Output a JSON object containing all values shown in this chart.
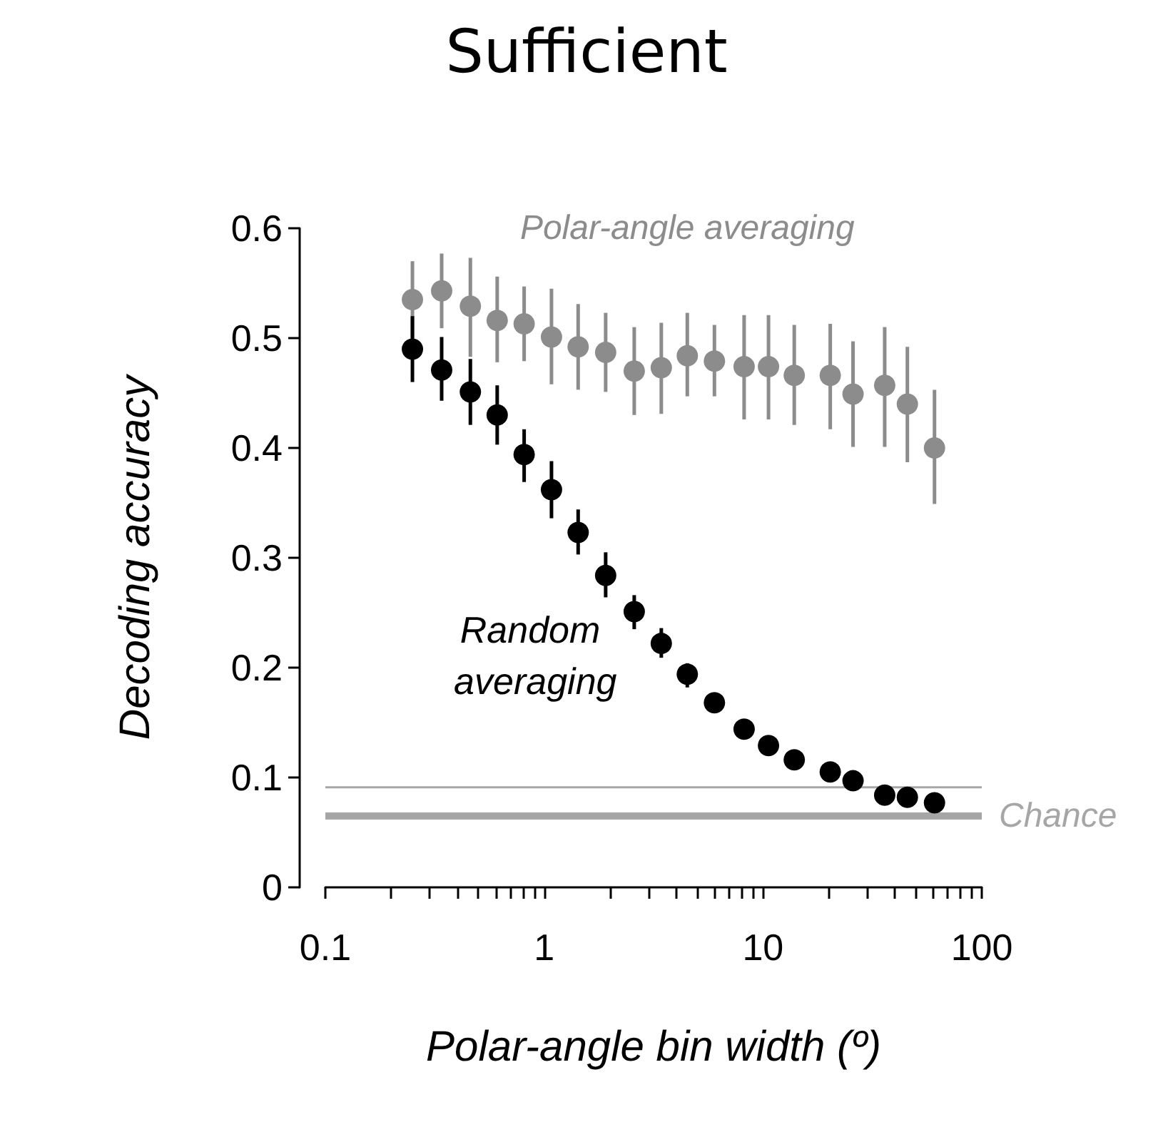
{
  "chart_data": {
    "type": "scatter",
    "title": "Sufficient",
    "xlabel": "Polar-angle bin width (º)",
    "ylabel": "Decoding accuracy",
    "log": "x",
    "xlim": [
      0.1,
      100
    ],
    "ylim": [
      0,
      0.6
    ],
    "xticks": [
      0.1,
      {
        "value": 0.2,
        "label": null
      },
      {
        "value": 0.3,
        "label": null
      },
      {
        "value": 0.4,
        "label": null
      },
      {
        "value": 0.5,
        "label": null
      },
      {
        "value": 0.6,
        "label": null
      },
      {
        "value": 0.7,
        "label": null
      },
      {
        "value": 0.8,
        "label": null
      },
      {
        "value": 0.9,
        "label": null
      },
      1,
      {
        "value": 2,
        "label": null
      },
      {
        "value": 3,
        "label": null
      },
      {
        "value": 4,
        "label": null
      },
      {
        "value": 5,
        "label": null
      },
      {
        "value": 6,
        "label": null
      },
      {
        "value": 7,
        "label": null
      },
      {
        "value": 8,
        "label": null
      },
      {
        "value": 9,
        "label": null
      },
      10,
      {
        "value": 20,
        "label": null
      },
      {
        "value": 30,
        "label": null
      },
      {
        "value": 40,
        "label": null
      },
      {
        "value": 50,
        "label": null
      },
      {
        "value": 60,
        "label": null
      },
      {
        "value": 70,
        "label": null
      },
      {
        "value": 80,
        "label": null
      },
      {
        "value": 90,
        "label": null
      },
      100
    ],
    "yticks": [
      0,
      0.1,
      0.2,
      0.3,
      0.4,
      0.5,
      0.6
    ],
    "grid": false,
    "legend": false,
    "marker": "circle",
    "x": [
      0.25,
      0.34,
      0.46,
      0.61,
      0.81,
      1.08,
      1.43,
      1.91,
      2.58,
      3.43,
      4.51,
      6.0,
      8.2,
      10.6,
      13.9,
      20.3,
      25.8,
      36.0,
      45.7,
      60.8
    ],
    "series": [
      {
        "name": "Polar-angle averaging",
        "color": "#8c8c8c",
        "values": [
          0.535,
          0.543,
          0.529,
          0.516,
          0.513,
          0.501,
          0.492,
          0.487,
          0.47,
          0.473,
          0.484,
          0.479,
          0.474,
          0.474,
          0.466,
          0.466,
          0.449,
          0.457,
          0.44,
          0.4
        ],
        "errors": [
          [
            0.5,
            0.57
          ],
          [
            0.509,
            0.577
          ],
          [
            0.483,
            0.573
          ],
          [
            0.478,
            0.556
          ],
          [
            0.479,
            0.547
          ],
          [
            0.458,
            0.545
          ],
          [
            0.453,
            0.531
          ],
          [
            0.451,
            0.523
          ],
          [
            0.43,
            0.51
          ],
          [
            0.431,
            0.514
          ],
          [
            0.447,
            0.523
          ],
          [
            0.447,
            0.512
          ],
          [
            0.426,
            0.521
          ],
          [
            0.426,
            0.521
          ],
          [
            0.421,
            0.512
          ],
          [
            0.417,
            0.513
          ],
          [
            0.401,
            0.497
          ],
          [
            0.401,
            0.51
          ],
          [
            0.387,
            0.492
          ],
          [
            0.349,
            0.453
          ]
        ]
      },
      {
        "name": "Random averaging",
        "color": "#000000",
        "values": [
          0.49,
          0.471,
          0.451,
          0.43,
          0.394,
          0.362,
          0.323,
          0.284,
          0.251,
          0.222,
          0.194,
          0.168,
          0.144,
          0.129,
          0.116,
          0.105,
          0.097,
          0.084,
          0.082,
          0.077
        ],
        "errors": [
          [
            0.46,
            0.52
          ],
          [
            0.443,
            0.501
          ],
          [
            0.421,
            0.481
          ],
          [
            0.403,
            0.457
          ],
          [
            0.369,
            0.417
          ],
          [
            0.336,
            0.388
          ],
          [
            0.303,
            0.344
          ],
          [
            0.264,
            0.305
          ],
          [
            0.235,
            0.266
          ],
          [
            0.209,
            0.236
          ],
          [
            0.182,
            0.204
          ],
          null,
          null,
          null,
          null,
          null,
          null,
          null,
          null,
          null
        ]
      }
    ],
    "ref_lines": [
      {
        "axis": "y",
        "value": 0.091,
        "color": "#a6a6a6",
        "line_style": "solid"
      },
      {
        "axis": "y",
        "value": 0.065,
        "label": "Chance",
        "color": "#a6a6a6",
        "line_style": "solid"
      }
    ]
  }
}
